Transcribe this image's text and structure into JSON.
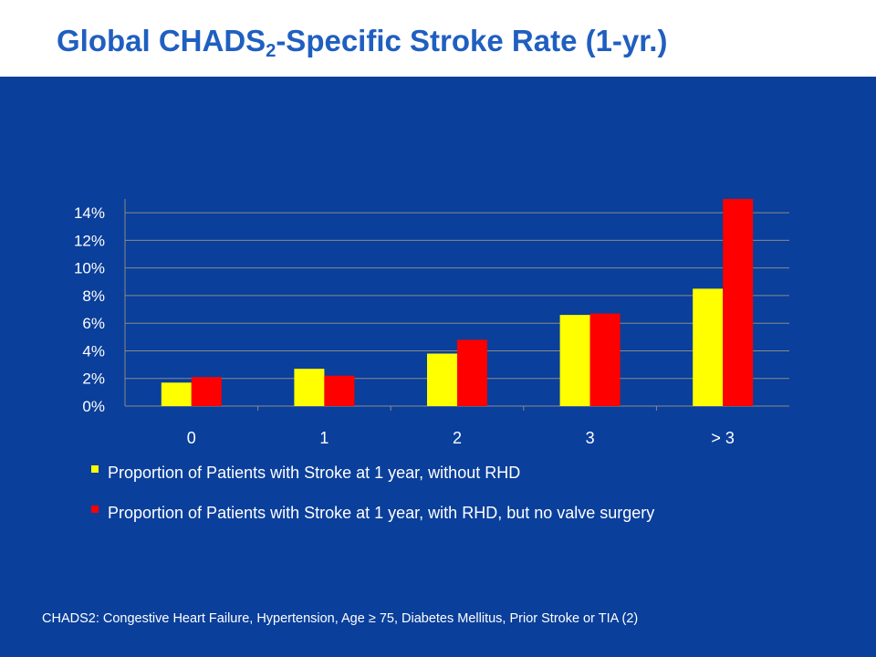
{
  "title": {
    "main": "Global CHADS",
    "subscript": "2",
    "rest": "-Specific Stroke Rate (1-yr.)"
  },
  "colors": {
    "background": "#0a3f9b",
    "title": "#1f5fc0",
    "series_without_rhd": "#ffff00",
    "series_with_rhd": "#ff0000",
    "text": "#ffffff"
  },
  "chart_data": {
    "type": "bar",
    "categories": [
      "0",
      "1",
      "2",
      "3",
      "> 3"
    ],
    "series": [
      {
        "name": "Proportion of Patients with Stroke at 1 year, without RHD",
        "values": [
          1.7,
          2.7,
          3.8,
          6.6,
          8.5
        ]
      },
      {
        "name": "Proportion of Patients with Stroke at 1 year, with RHD, but no valve surgery",
        "values": [
          2.1,
          2.2,
          4.8,
          6.7,
          15.0
        ]
      }
    ],
    "yticks": [
      "0%",
      "2%",
      "4%",
      "6%",
      "8%",
      "10%",
      "12%",
      "14%"
    ],
    "ylim": [
      0,
      15
    ],
    "grid": true,
    "legend": "bottom"
  },
  "footnote": "CHADS2: Congestive Heart Failure, Hypertension, Age ≥ 75, Diabetes Mellitus, Prior Stroke or TIA (2)"
}
